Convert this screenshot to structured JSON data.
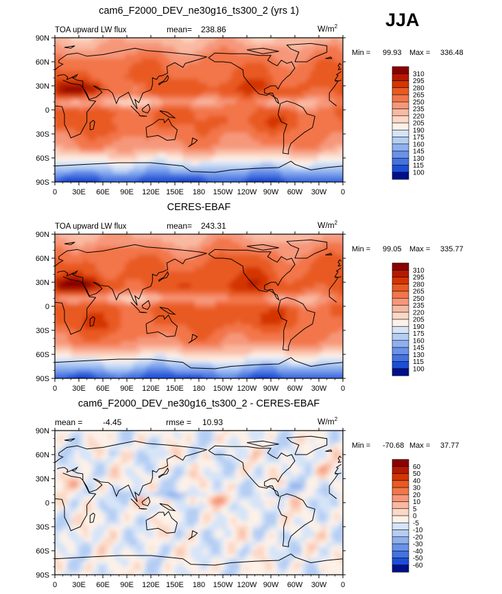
{
  "season": "JJA",
  "colors": {
    "background": "#ffffff",
    "text": "#000000",
    "coastline": "#000000",
    "frame": "#000000"
  },
  "units_label": "W/m",
  "units_superscript": "2",
  "x_tick_labels": [
    "0",
    "30E",
    "60E",
    "90E",
    "120E",
    "150E",
    "180",
    "150W",
    "120W",
    "90W",
    "60W",
    "30W",
    "0"
  ],
  "y_tick_labels": [
    "90N",
    "60N",
    "30N",
    "0",
    "30S",
    "60S",
    "90S"
  ],
  "chart_data": [
    {
      "type": "heatmap",
      "title": "cam6_F2000_DEV_ne30g16_ts300_2 (yrs 1)",
      "subtitle_left": "TOA upward LW flux",
      "stat_label": "mean=",
      "stat_value": "238.86",
      "min_label": "Min =",
      "min_value": "99.93",
      "max_label": "Max =",
      "max_value": "336.48",
      "xlim": [
        0,
        360
      ],
      "ylim": [
        -90,
        90
      ],
      "colorbar_levels": [
        "310",
        "295",
        "280",
        "265",
        "250",
        "235",
        "220",
        "205",
        "190",
        "175",
        "160",
        "145",
        "130",
        "115",
        "100"
      ],
      "colorbar_colors": [
        "#8b0000",
        "#b51a00",
        "#d43500",
        "#e85a22",
        "#f2764a",
        "#f6977a",
        "#f9b9a2",
        "#fcd8c6",
        "#fdf1e8",
        "#d6e4f8",
        "#b4cdf3",
        "#8eb0ee",
        "#6a92e8",
        "#4472e0",
        "#1c4fd8",
        "#00108a"
      ],
      "anomaly": false
    },
    {
      "type": "heatmap",
      "title": "CERES-EBAF",
      "subtitle_left": "TOA upward LW flux",
      "stat_label": "mean=",
      "stat_value": "243.31",
      "min_label": "Min =",
      "min_value": "99.05",
      "max_label": "Max =",
      "max_value": "335.77",
      "xlim": [
        0,
        360
      ],
      "ylim": [
        -90,
        90
      ],
      "colorbar_levels": [
        "310",
        "295",
        "280",
        "265",
        "250",
        "235",
        "220",
        "205",
        "190",
        "175",
        "160",
        "145",
        "130",
        "115",
        "100"
      ],
      "colorbar_colors": [
        "#8b0000",
        "#b51a00",
        "#d43500",
        "#e85a22",
        "#f2764a",
        "#f6977a",
        "#f9b9a2",
        "#fcd8c6",
        "#fdf1e8",
        "#d6e4f8",
        "#b4cdf3",
        "#8eb0ee",
        "#6a92e8",
        "#4472e0",
        "#1c4fd8",
        "#00108a"
      ],
      "anomaly": false
    },
    {
      "type": "heatmap",
      "title": "cam6_F2000_DEV_ne30g16_ts300_2 - CERES-EBAF",
      "subtitle_left": "mean =",
      "subtitle_left_value": "-4.45",
      "stat_label": "rmse =",
      "stat_value": "10.93",
      "min_label": "Min =",
      "min_value": "-70.68",
      "max_label": "Max =",
      "max_value": "37.77",
      "xlim": [
        0,
        360
      ],
      "ylim": [
        -90,
        90
      ],
      "colorbar_levels": [
        "60",
        "50",
        "40",
        "30",
        "20",
        "10",
        "5",
        "0",
        "-5",
        "-10",
        "-20",
        "-30",
        "-40",
        "-50",
        "-60"
      ],
      "colorbar_colors": [
        "#8b0000",
        "#b51a00",
        "#d43500",
        "#e85a22",
        "#f2764a",
        "#f6977a",
        "#f9b9a2",
        "#fcd8c6",
        "#fdf1e8",
        "#d6e4f8",
        "#b4cdf3",
        "#8eb0ee",
        "#6a92e8",
        "#4472e0",
        "#1c4fd8",
        "#00108a"
      ],
      "anomaly": true
    }
  ]
}
